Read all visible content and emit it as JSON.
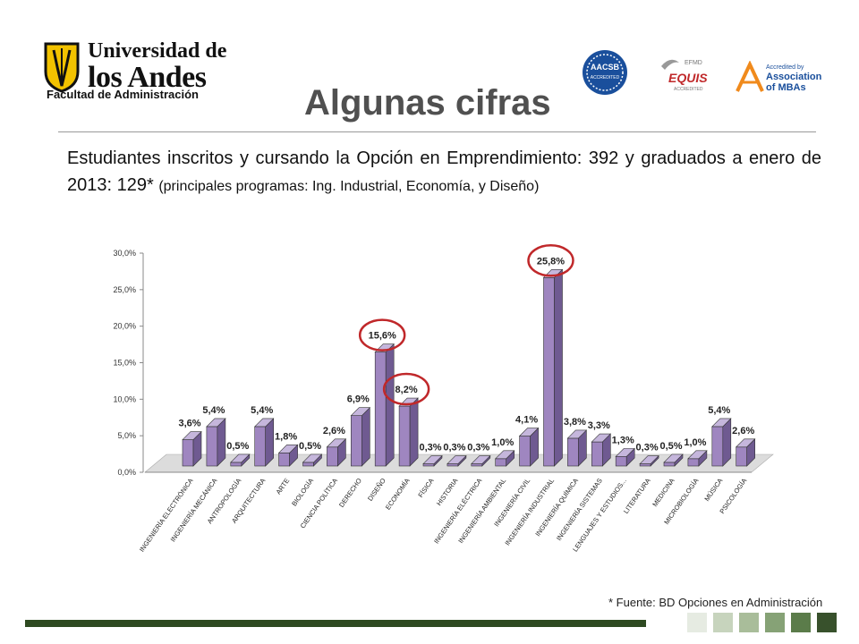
{
  "header": {
    "logo": {
      "line1": "Universidad de",
      "line2": "los Andes",
      "line3": "Facultad de Administración"
    },
    "accreditations": {
      "aacsb": {
        "top": "AACSB",
        "bottom": "ACCREDITED"
      },
      "equis": {
        "top": "EFMD",
        "main": "EQUIS",
        "bottom": "ACCREDITED"
      },
      "amba": {
        "line1": "Accredited by",
        "line2": "Association",
        "line3": "of MBAs"
      }
    },
    "title": "Algunas cifras"
  },
  "body": {
    "paragraph_main": "Estudiantes inscritos y cursando la Opción en Emprendimiento: 392 y graduados a enero de 2013: 129*",
    "paragraph_small": "(principales programas: Ing. Industrial, Economía, y Diseño)"
  },
  "chart_data": {
    "type": "bar",
    "title": "",
    "xlabel": "",
    "ylabel": "",
    "ylim": [
      0,
      30
    ],
    "y_ticks": [
      "0,0%",
      "5,0%",
      "10,0%",
      "15,0%",
      "20,0%",
      "25,0%",
      "30,0%"
    ],
    "categories": [
      "INGENIERÍA ELECTRÓNICA",
      "INGENIERÍA MECÁNICA",
      "ANTROPOLOGÍA",
      "ARQUITECTURA",
      "ARTE",
      "BIOLOGÍA",
      "CIENCIA POLÍTICA",
      "DERECHO",
      "DISEÑO",
      "ECONOMÍA",
      "FÍSICA",
      "HISTORIA",
      "INGENIERÍA ELÉCTRICA",
      "INGENIERÍA AMBIENTAL",
      "INGENIERÍA CIVIL",
      "INGENIERÍA INDUSTRIAL",
      "INGENIERÍA QUÍMICA",
      "INGENIERÍA SISTEMAS",
      "LENGUAJES Y ESTUDIOS...",
      "LITERATURA",
      "MEDICINA",
      "MICROBIOLOGÍA",
      "MÚSICA",
      "PSICOLOGÍA"
    ],
    "values": [
      3.6,
      5.4,
      0.5,
      5.4,
      1.8,
      0.5,
      2.6,
      6.9,
      15.6,
      8.2,
      0.3,
      0.3,
      0.3,
      1.0,
      4.1,
      25.8,
      3.8,
      3.3,
      1.3,
      0.3,
      0.5,
      1.0,
      5.4,
      2.6
    ],
    "labels": [
      "3,6%",
      "5,4%",
      "0,5%",
      "5,4%",
      "1,8%",
      "0,5%",
      "2,6%",
      "6,9%",
      "15,6%",
      "8,2%",
      "0,3%",
      "0,3%",
      "0,3%",
      "1,0%",
      "4,1%",
      "25,8%",
      "3,8%",
      "3,3%",
      "1,3%",
      "0,3%",
      "0,5%",
      "1,0%",
      "5,4%",
      "2,6%"
    ],
    "highlighted": [
      "DISEÑO",
      "ECONOMÍA",
      "INGENIERÍA INDUSTRIAL"
    ],
    "bar_color": "#9f86c0",
    "highlight_color": "#c0282a",
    "grid": false,
    "legend": "none"
  },
  "footer": {
    "source": "* Fuente: BD Opciones en Administración",
    "bar_color": "#2e4a21",
    "squares": [
      "#e6ebe2",
      "#c7d4bd",
      "#a9bd9a",
      "#86a276",
      "#5b7c4a",
      "#38512c"
    ]
  }
}
